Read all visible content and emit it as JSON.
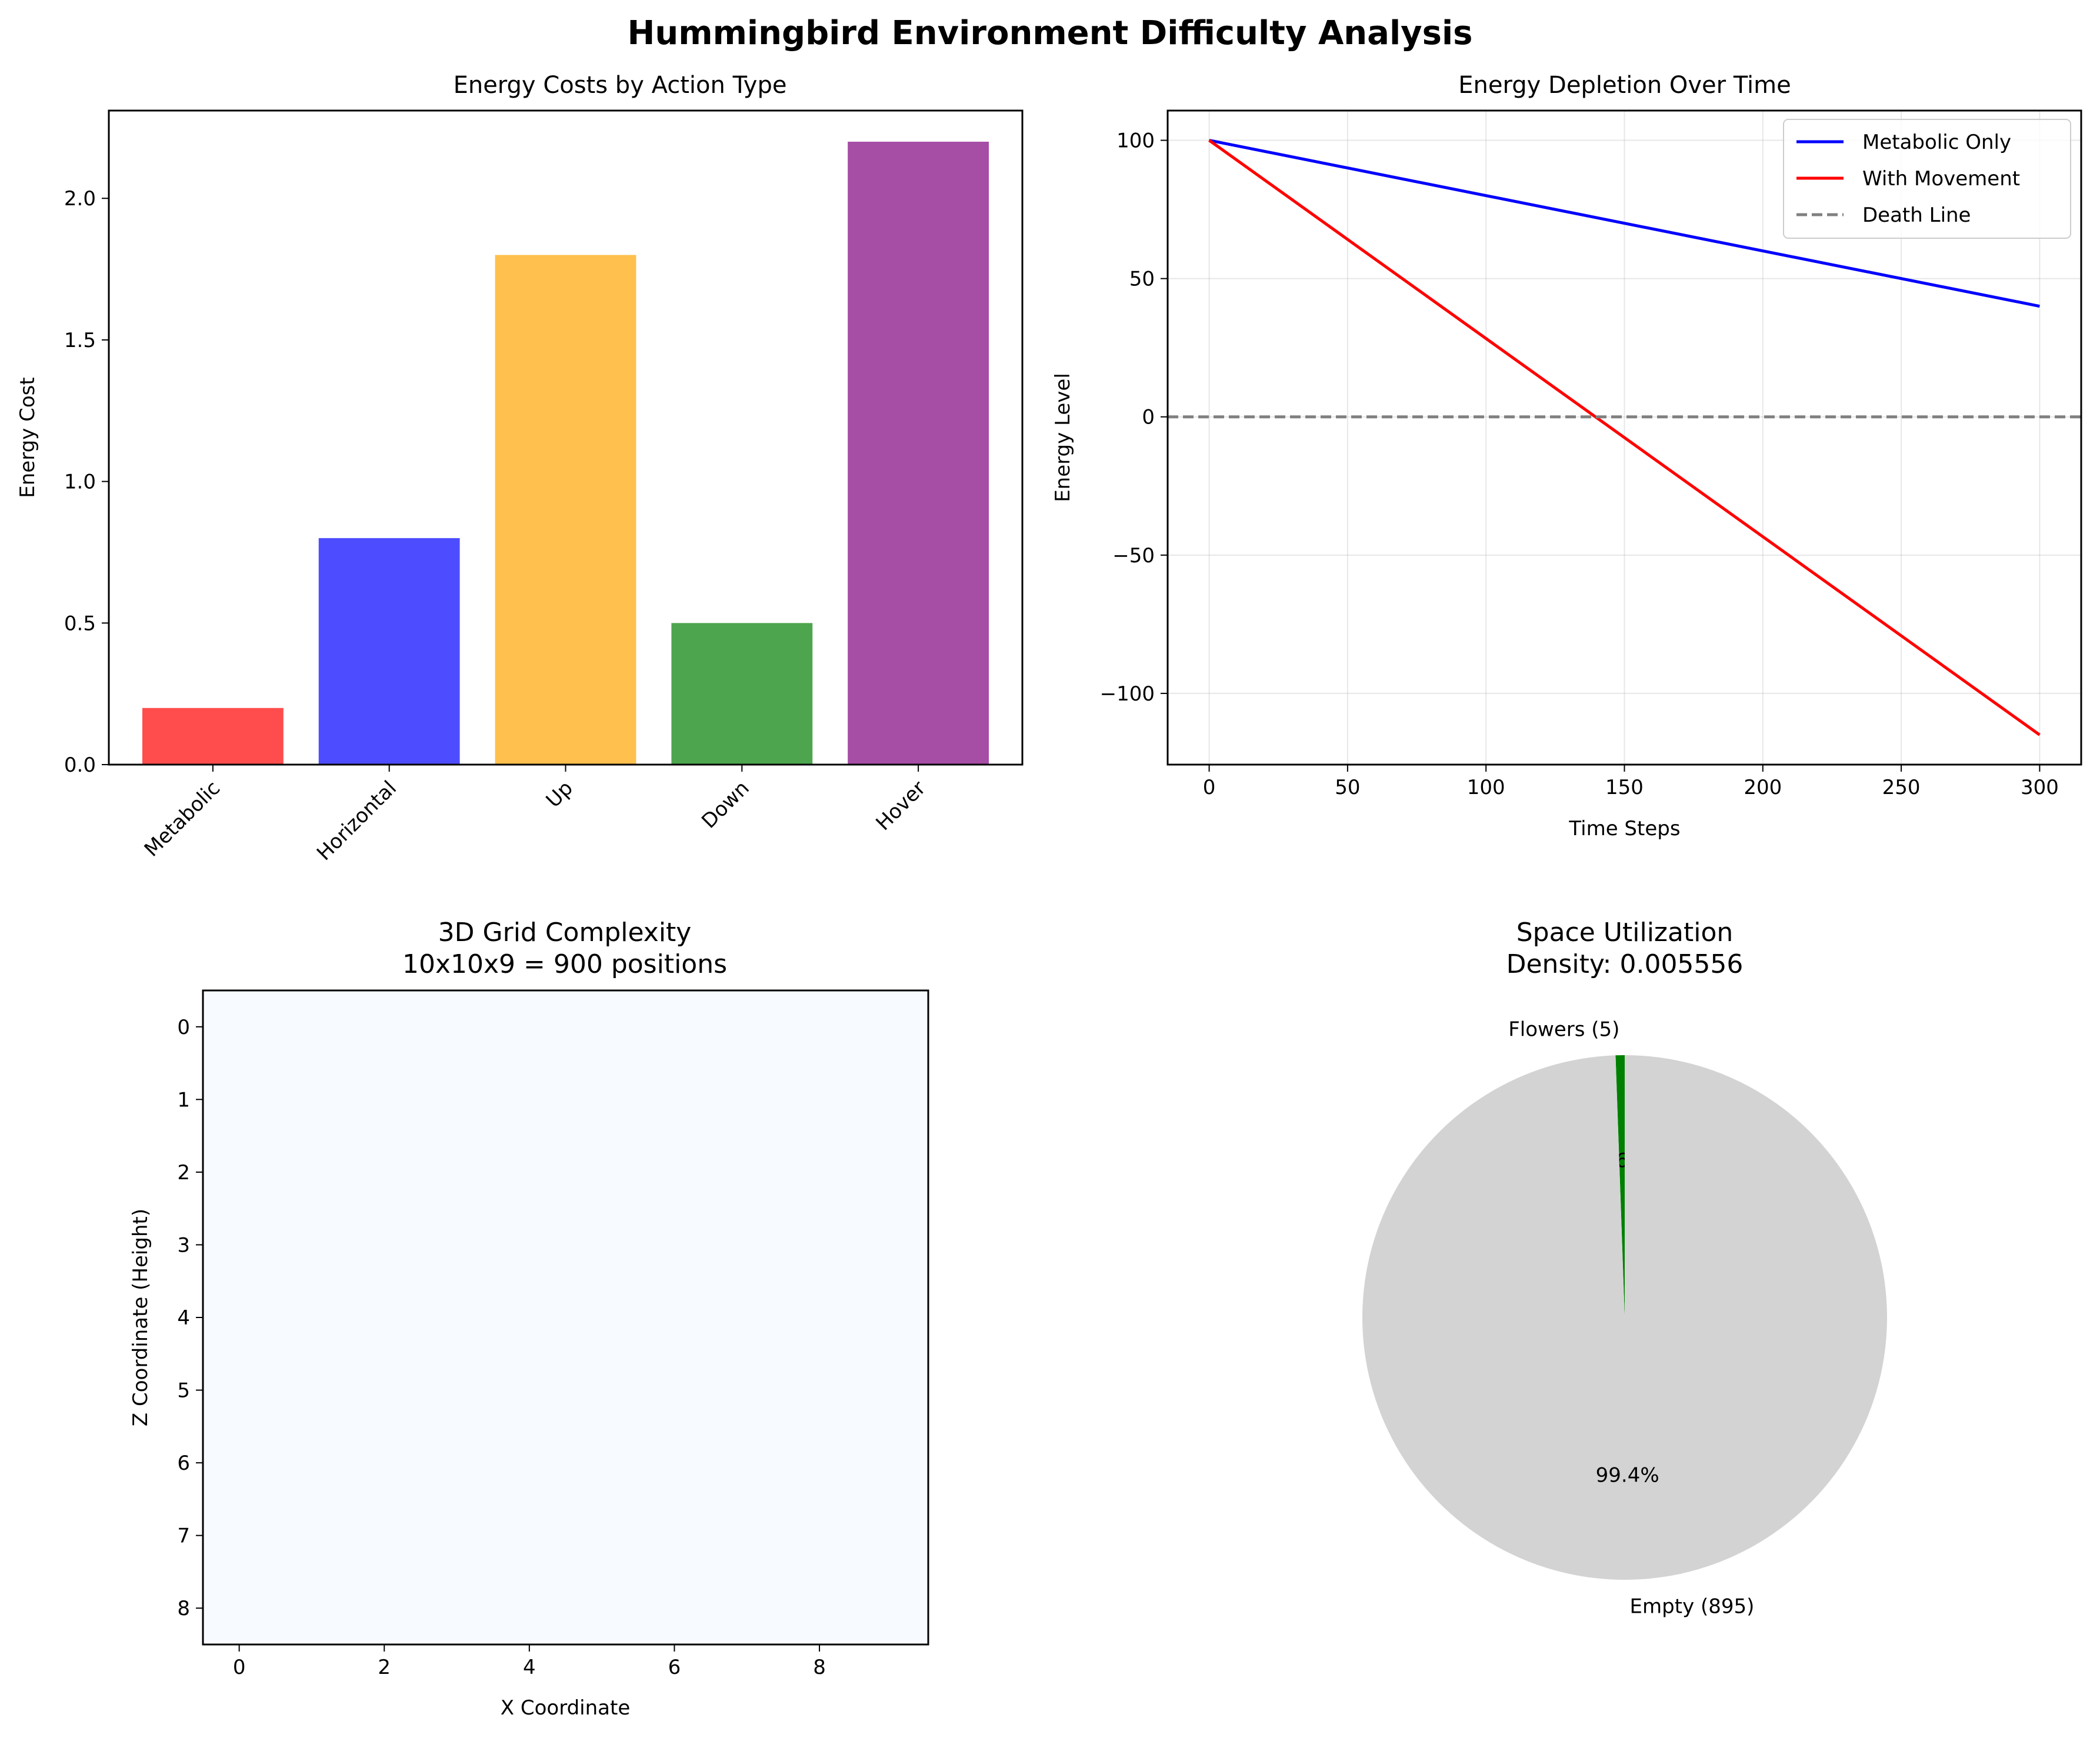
{
  "suptitle": "Hummingbird Environment Difficulty Analysis",
  "chart_data": [
    {
      "type": "bar",
      "title": "Energy Costs by Action Type",
      "xlabel": "",
      "ylabel": "Energy Cost",
      "categories": [
        "Metabolic",
        "Horizontal",
        "Up",
        "Down",
        "Hover"
      ],
      "values": [
        0.2,
        0.8,
        1.8,
        0.5,
        2.2
      ],
      "colors": [
        "#ff4d4d",
        "#4d4dff",
        "#ffc04d",
        "#4da64d",
        "#a64da6"
      ],
      "ylim": [
        0,
        2.31
      ],
      "yticks": [
        0.0,
        0.5,
        1.0,
        1.5,
        2.0
      ],
      "ytick_labels": [
        "0.0",
        "0.5",
        "1.0",
        "1.5",
        "2.0"
      ],
      "grid": false
    },
    {
      "type": "line",
      "title": "Energy Depletion Over Time",
      "xlabel": "Time Steps",
      "ylabel": "Energy Level",
      "xlim": [
        -15,
        315
      ],
      "ylim": [
        -125.75,
        110.75
      ],
      "xticks": [
        0,
        50,
        100,
        150,
        200,
        250,
        300
      ],
      "xtick_labels": [
        "0",
        "50",
        "100",
        "150",
        "200",
        "250",
        "300"
      ],
      "yticks": [
        -100,
        -50,
        0,
        50,
        100
      ],
      "ytick_labels": [
        "−100",
        "−50",
        "0",
        "50",
        "100"
      ],
      "grid": true,
      "legend": "top-right",
      "series": [
        {
          "name": "Metabolic Only",
          "color": "#0000ff",
          "dash": "solid",
          "x": [
            0,
            300
          ],
          "y": [
            100,
            40
          ]
        },
        {
          "name": "With Movement",
          "color": "#ff0000",
          "dash": "solid",
          "x": [
            0,
            300
          ],
          "y": [
            100,
            -115
          ]
        },
        {
          "name": "Death Line",
          "color": "#808080",
          "dash": "dashed",
          "x": [
            -15,
            315
          ],
          "y": [
            0,
            0
          ]
        }
      ]
    },
    {
      "type": "heatmap",
      "title": "3D Grid Complexity",
      "subtitle": "10x10x9 = 900 positions",
      "xlabel": "X Coordinate",
      "ylabel": "Z Coordinate (Height)",
      "xlim": [
        -0.5,
        9.5
      ],
      "ylim": [
        8.5,
        -0.5
      ],
      "xticks": [
        0,
        2,
        4,
        6,
        8
      ],
      "xtick_labels": [
        "0",
        "2",
        "4",
        "6",
        "8"
      ],
      "yticks": [
        0,
        1,
        2,
        3,
        4,
        5,
        6,
        7,
        8
      ],
      "ytick_labels": [
        "0",
        "1",
        "2",
        "3",
        "4",
        "5",
        "6",
        "7",
        "8"
      ],
      "fill_color": "#f7fbff"
    },
    {
      "type": "pie",
      "title": "Space Utilization",
      "subtitle": "Density: 0.005556",
      "slices": [
        {
          "label": "Flowers (5)",
          "value": 5,
          "pct_label": "0.6%",
          "color": "#008000"
        },
        {
          "label": "Empty (895)",
          "value": 895,
          "pct_label": "99.4%",
          "color": "#d3d3d3"
        }
      ],
      "startangle": 90
    }
  ]
}
